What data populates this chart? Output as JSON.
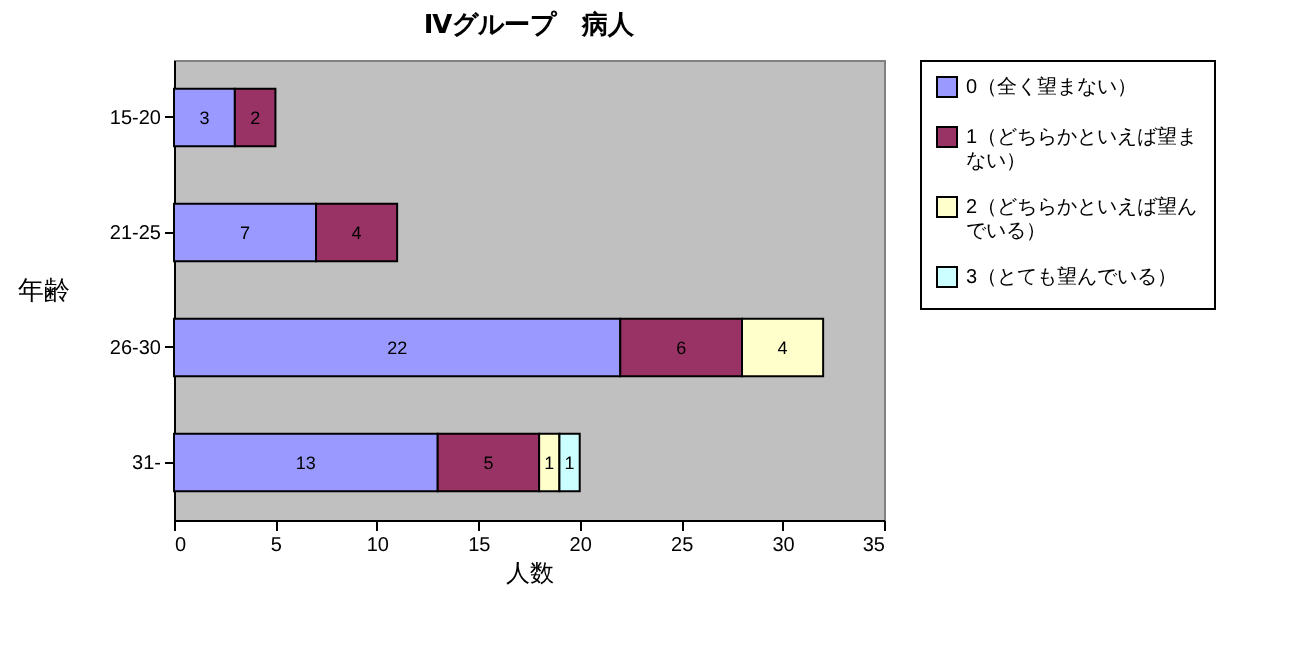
{
  "chart_data": {
    "type": "bar",
    "orientation": "horizontal",
    "stacked": true,
    "title": "Ⅳグループ　病人",
    "xlabel": "人数",
    "ylabel": "年齢",
    "categories": [
      "15-20",
      "21-25",
      "26-30",
      "31-"
    ],
    "series": [
      {
        "name": "0（全く望まない）",
        "color": "#9999ff",
        "values": [
          3,
          7,
          22,
          13
        ]
      },
      {
        "name": "1（どちらかといえば望まない）",
        "color": "#993366",
        "values": [
          2,
          4,
          6,
          5
        ]
      },
      {
        "name": "2（どちらかといえば望んでいる）",
        "color": "#ffffcc",
        "values": [
          null,
          null,
          4,
          1
        ]
      },
      {
        "name": "3（とても望んでいる）",
        "color": "#ccffff",
        "values": [
          null,
          null,
          null,
          1
        ]
      }
    ],
    "xlim": [
      0,
      35
    ],
    "xticks": [
      0,
      5,
      10,
      15,
      20,
      25,
      30,
      35
    ],
    "grid": false,
    "legend": "right",
    "data_labels": true
  }
}
